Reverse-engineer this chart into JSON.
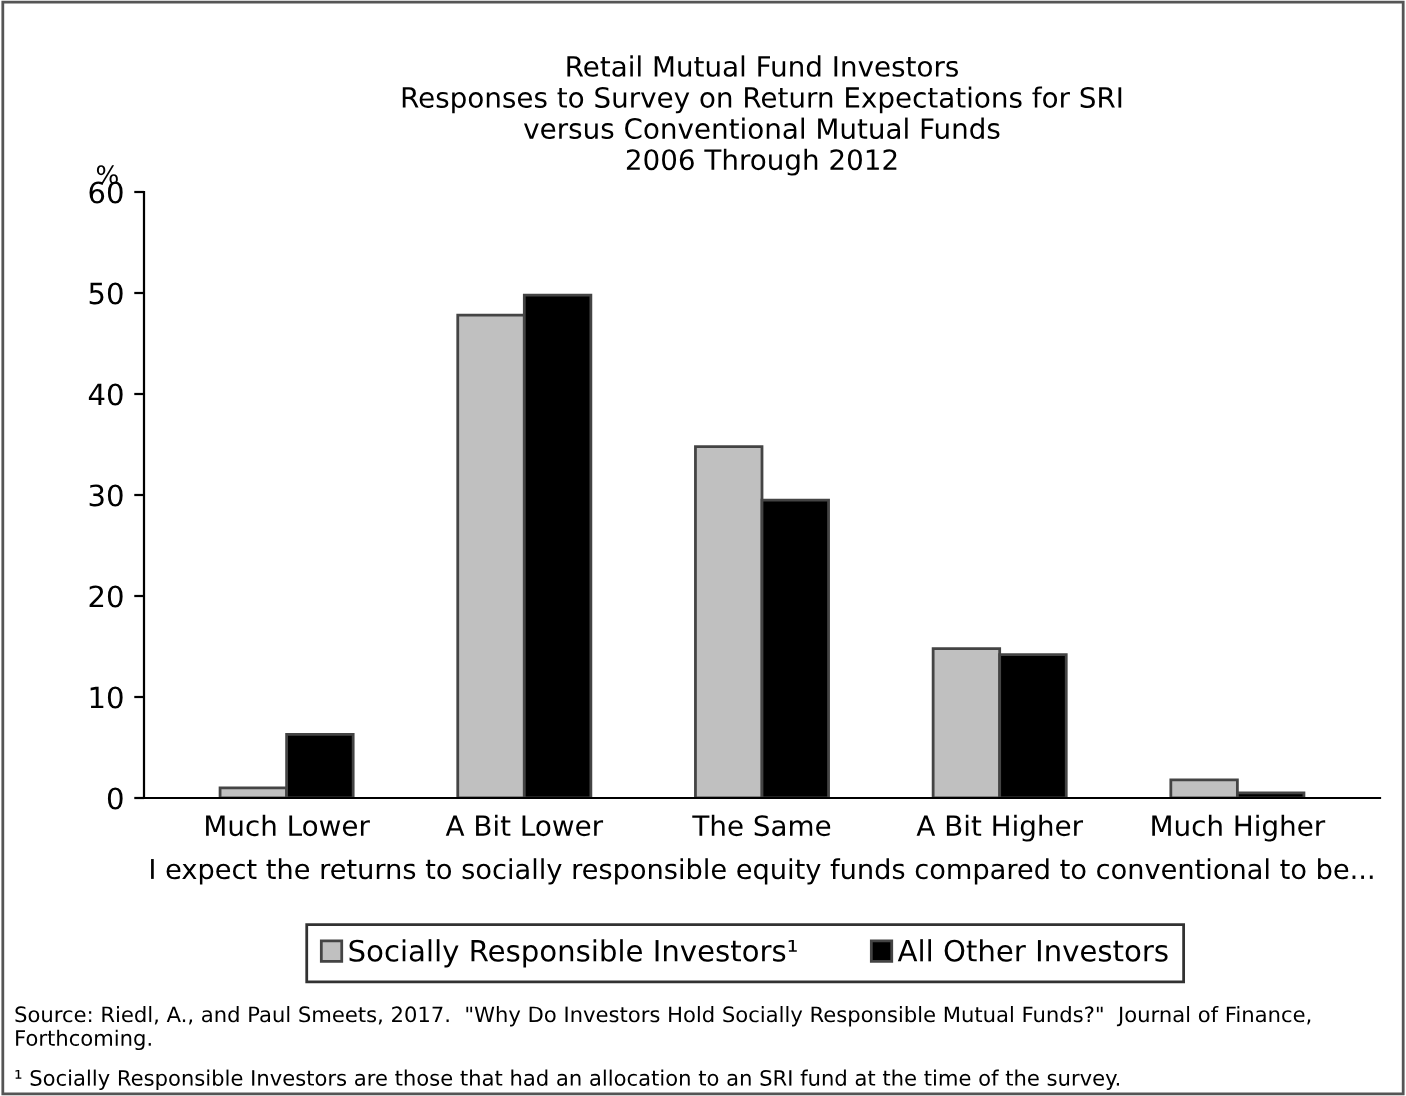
{
  "chart_data": {
    "type": "bar",
    "title": "Retail Mutual Fund Investors\nResponses to Survey on Return Expectations for SRI\nversus Conventional Mutual Funds\n2006 Through 2012",
    "ylabel": "%",
    "xlabel": "I expect the returns to socially responsible equity funds compared to conventional to be...",
    "categories": [
      "Much Lower",
      "A Bit Lower",
      "The Same",
      "A Bit Higher",
      "Much Higher"
    ],
    "series": [
      {
        "name": "Socially Responsible Investors¹",
        "color": "#c0c0c0",
        "values": [
          1.0,
          47.8,
          34.8,
          14.8,
          1.8
        ]
      },
      {
        "name": "All Other Investors",
        "color": "#000000",
        "values": [
          6.3,
          49.8,
          29.5,
          14.2,
          0.5
        ]
      }
    ],
    "ylim": [
      0,
      60
    ],
    "yticks": [
      0,
      10,
      20,
      30,
      40,
      50,
      60
    ],
    "grid": false,
    "legend": "bottom",
    "annotations": [
      "Source: Riedl, A., and Paul Smeets, 2017.  \"Why Do Investors Hold Socially Responsible Mutual Funds?\"  Journal of Finance, Forthcoming.",
      "¹ Socially Responsible Investors are those that had an allocation to an SRI fund at the time of the survey."
    ]
  }
}
